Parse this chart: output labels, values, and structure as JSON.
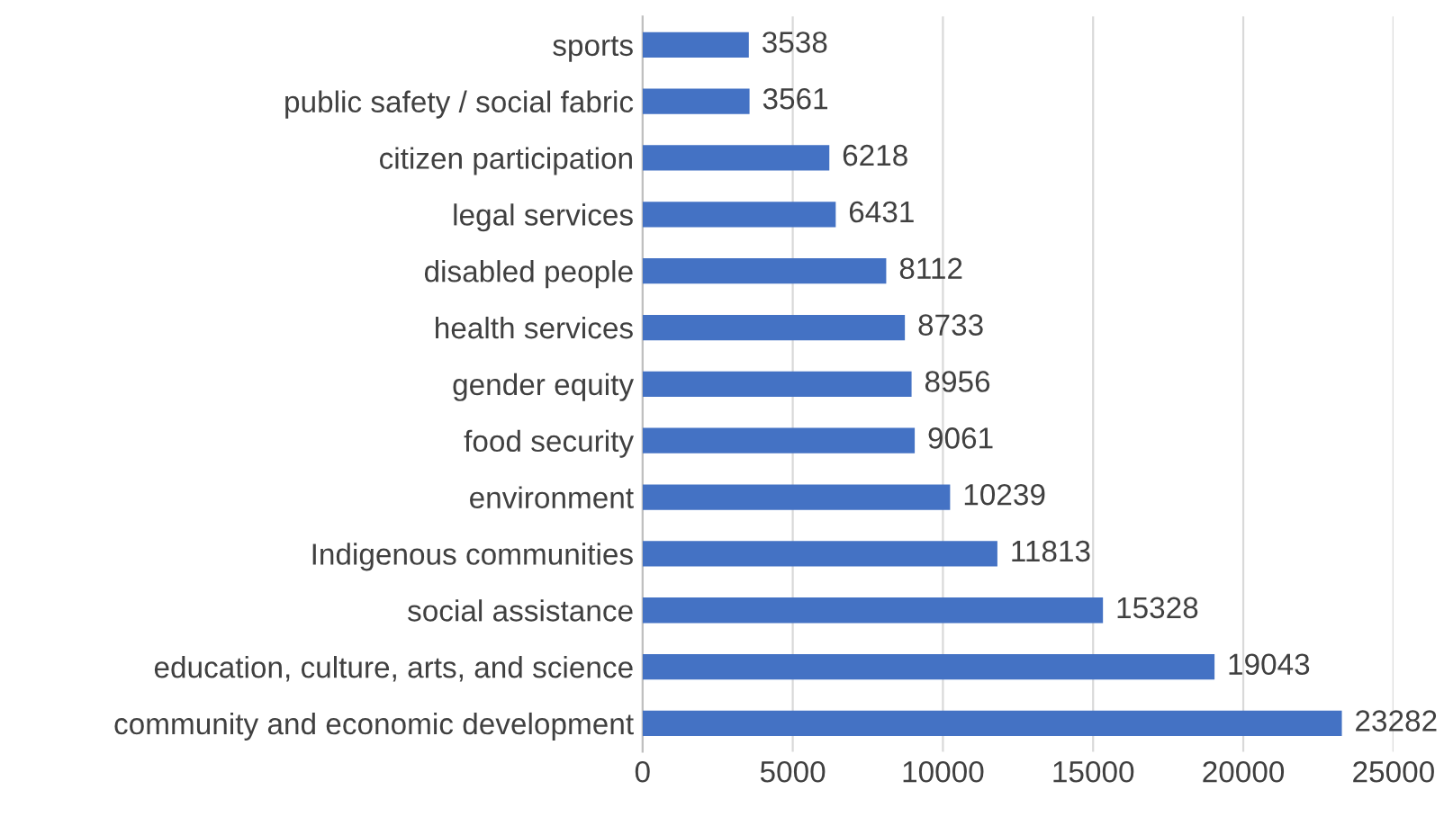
{
  "chart_data": {
    "type": "bar",
    "orientation": "horizontal",
    "categories": [
      "sports",
      "public safety / social fabric",
      "citizen participation",
      "legal services",
      "disabled people",
      "health services",
      "gender equity",
      "food security",
      "environment",
      "Indigenous communities",
      "social assistance",
      "education, culture, arts, and science",
      "community and economic development"
    ],
    "values": [
      3538,
      3561,
      6218,
      6431,
      8112,
      8733,
      8956,
      9061,
      10239,
      11813,
      15328,
      19043,
      23282
    ],
    "color": "#4472c4",
    "xlim": [
      0,
      25000
    ],
    "xticks": [
      0,
      5000,
      10000,
      15000,
      20000,
      25000
    ],
    "grid": "x",
    "data_labels": true
  }
}
